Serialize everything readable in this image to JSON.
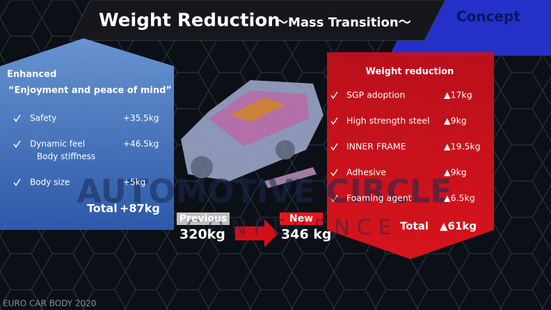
{
  "header": {
    "title": "Weight Reduction",
    "subtitle": "～Mass Transition～",
    "tag": "Concept"
  },
  "enhanced": {
    "heading": "Enhanced",
    "subheading": "“Enjoyment and peace of mind”",
    "items": [
      {
        "label": "Safety",
        "value": "+35.5kg"
      },
      {
        "label": "Dynamic feel",
        "sublabel": "Body stiffness",
        "value": "+46.5kg"
      },
      {
        "label": "Body size",
        "value": "+5kg"
      }
    ],
    "total_label": "Total",
    "total_value": "+87kg"
  },
  "comparison": {
    "previous_label": "Previous",
    "previous_value": "320kg",
    "new_label": "New",
    "new_value": "346 kg"
  },
  "reduction": {
    "heading": "Weight reduction",
    "items": [
      {
        "label": "SGP adoption",
        "value": "▲17kg"
      },
      {
        "label": "High strength steel",
        "value": "▲9kg"
      },
      {
        "label": "INNER   FRAME",
        "value": "▲19.5kg"
      },
      {
        "label": "Adhesive",
        "value": "▲9kg"
      },
      {
        "label": "Foaming agent",
        "value": "▲6.5kg"
      }
    ],
    "total_label": "Total",
    "total_value": "▲61kg"
  },
  "watermark": {
    "line1": "AUTOMOTIVE CIRCLE",
    "line2": "CONFERENCE"
  },
  "footer": "EURO CAR BODY 2020"
}
